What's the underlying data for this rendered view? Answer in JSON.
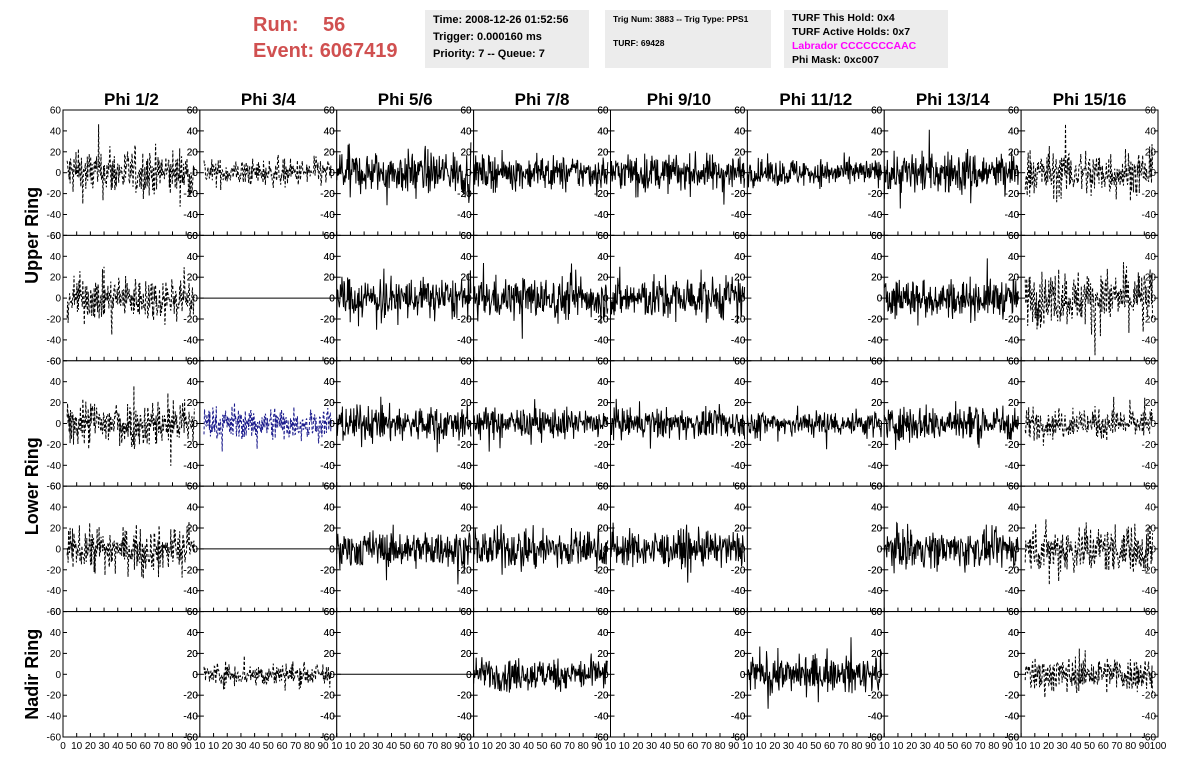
{
  "header": {
    "run_label": "Run:",
    "run_value": "56",
    "event_label": "Event:",
    "event_value": "6067419",
    "time": "Time: 2008-12-26 01:52:56",
    "trigger": "Trigger: 0.000160 ms",
    "priority": "Priority: 7 -- Queue: 7",
    "trig_num": "Trig Num: 3883 -- Trig Type: PPS1",
    "turf": "TURF: 69428",
    "turf_this_hold": "TURF This Hold: 0x4",
    "turf_active_holds": "TURF Active Holds: 0x7",
    "labrador": "Labrador CCCCCCCAAC",
    "phi_mask": "Phi Mask: 0xc007"
  },
  "colors": {
    "run_text": "#d05050",
    "labrador_text": "#ff00ff",
    "trace_black": "#000000",
    "trace_blue": "#1a1a8c",
    "info_box": "#ececec"
  },
  "chart_data": {
    "type": "line",
    "columns": [
      "Phi 1/2",
      "Phi 3/4",
      "Phi 5/6",
      "Phi 7/8",
      "Phi 9/10",
      "Phi 11/12",
      "Phi 13/14",
      "Phi 15/16"
    ],
    "ring_labels": [
      "Upper Ring",
      "Lower Ring",
      "Nadir Ring"
    ],
    "rows": 5,
    "ring_row_spans": [
      [
        0,
        1
      ],
      [
        2,
        3
      ],
      [
        4,
        4
      ]
    ],
    "xlim": [
      0,
      100
    ],
    "ylim": [
      -60,
      60
    ],
    "x_ticks": [
      0,
      10,
      20,
      30,
      40,
      50,
      60,
      70,
      80,
      90,
      100
    ],
    "y_ticks": [
      -60,
      -40,
      -20,
      0,
      20,
      40,
      60
    ],
    "x_tick_labels": [
      "10",
      "20",
      "30",
      "40",
      "50",
      "60",
      "70",
      "80",
      "90"
    ],
    "bottom_left_tick_label": "0",
    "bottom_right_tick_label": "100",
    "samples_per_trace": 260,
    "grid": false,
    "panels": [
      [
        "dashed",
        "dashed",
        "solid",
        "solid",
        "solid",
        "solid",
        "solid",
        "dashed"
      ],
      [
        "dashed",
        "flat",
        "solid",
        "solid",
        "solid",
        "empty",
        "solid",
        "dashed"
      ],
      [
        "dashed",
        "blue",
        "solid",
        "solid",
        "solid",
        "solid",
        "solid",
        "dashed"
      ],
      [
        "dashed",
        "flat",
        "solid",
        "solid",
        "solid",
        "empty",
        "solid",
        "dashed"
      ],
      [
        "empty",
        "dashed",
        "flat",
        "solid",
        "empty",
        "solid",
        "empty",
        "dashed"
      ]
    ],
    "amplitudes": [
      [
        16,
        9,
        14,
        11,
        12,
        9,
        14,
        16
      ],
      [
        15,
        0,
        14,
        14,
        14,
        0,
        13,
        18
      ],
      [
        16,
        11,
        12,
        10,
        10,
        9,
        12,
        10
      ],
      [
        14,
        0,
        12,
        13,
        12,
        0,
        12,
        16
      ],
      [
        0,
        8,
        0,
        11,
        0,
        12,
        0,
        12
      ]
    ]
  }
}
